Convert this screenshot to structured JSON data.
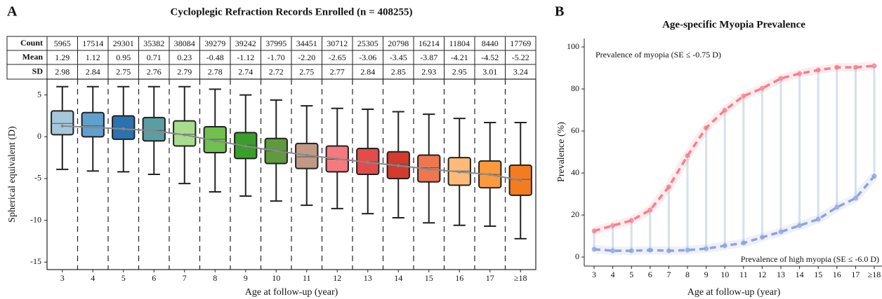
{
  "chart_data": [
    {
      "type": "box",
      "panel_label": "A",
      "title": "Cycloplegic Refraction Records Enrolled (n = 408255)",
      "x_label": "Age at follow-up (year)",
      "y_label": "Spherical equivalent (D)",
      "categories": [
        "3",
        "4",
        "5",
        "6",
        "7",
        "8",
        "9",
        "10",
        "11",
        "12",
        "13",
        "14",
        "15",
        "16",
        "17",
        "≥18"
      ],
      "table": {
        "rows": [
          {
            "name": "Count",
            "values": [
              5965,
              17514,
              29301,
              35382,
              38084,
              39279,
              39242,
              37995,
              34451,
              30712,
              25305,
              20798,
              16214,
              11804,
              8440,
              17769
            ]
          },
          {
            "name": "Mean",
            "values": [
              1.29,
              1.12,
              0.95,
              0.71,
              0.23,
              -0.48,
              -1.12,
              -1.7,
              -2.2,
              -2.65,
              -3.06,
              -3.45,
              -3.87,
              -4.21,
              -4.52,
              -5.22
            ],
            "value_labels": [
              "1.29",
              "1.12",
              "0.95",
              "0.71",
              "0.23",
              "-0.48",
              "-1.12",
              "-1.70",
              "-2.20",
              "-2.65",
              "-3.06",
              "-3.45",
              "-3.87",
              "-4.21",
              "-4.52",
              "-5.22"
            ]
          },
          {
            "name": "SD",
            "values": [
              2.98,
              2.84,
              2.75,
              2.76,
              2.79,
              2.78,
              2.74,
              2.72,
              2.75,
              2.77,
              2.84,
              2.85,
              2.93,
              2.95,
              3.01,
              3.24
            ]
          }
        ]
      },
      "whisker_high": [
        6.0,
        6.0,
        6.0,
        6.0,
        6.0,
        5.7,
        5.0,
        4.4,
        3.7,
        3.4,
        3.3,
        3.0,
        2.7,
        2.2,
        1.7,
        1.7
      ],
      "q3": [
        3.1,
        2.9,
        2.5,
        2.3,
        1.9,
        1.2,
        0.5,
        -0.2,
        -0.8,
        -1.1,
        -1.4,
        -1.8,
        -2.2,
        -2.5,
        -2.9,
        -3.4
      ],
      "median": [
        1.6,
        1.3,
        1.0,
        0.75,
        0.3,
        -0.3,
        -1.0,
        -1.7,
        -2.4,
        -2.7,
        -3.0,
        -3.3,
        -3.7,
        -4.1,
        -4.5,
        -5.1
      ],
      "q1": [
        0.25,
        0.0,
        -0.3,
        -0.5,
        -1.1,
        -1.9,
        -2.6,
        -3.2,
        -3.8,
        -4.2,
        -4.5,
        -5.0,
        -5.4,
        -5.8,
        -6.1,
        -7.0
      ],
      "whisker_low": [
        -3.9,
        -4.1,
        -4.2,
        -4.5,
        -5.6,
        -6.6,
        -7.1,
        -7.7,
        -8.2,
        -8.6,
        -9.2,
        -9.7,
        -10.3,
        -10.6,
        -10.7,
        -12.2
      ],
      "colors": [
        "#a6c8dc",
        "#5fa0cf",
        "#2c72b0",
        "#5a9ea3",
        "#a8dc8e",
        "#6fc04f",
        "#3a9e2a",
        "#5f9a3e",
        "#c09a84",
        "#f47a80",
        "#e24c4c",
        "#d43a2e",
        "#ee7750",
        "#fdbb7a",
        "#fb9a3c",
        "#f47c20"
      ],
      "mean_line_color": "#888888",
      "ylim": [
        -15.9,
        6.9
      ],
      "yticks": [
        5,
        0,
        -5,
        -10,
        -15
      ]
    },
    {
      "type": "line",
      "panel_label": "B",
      "title": "Age-specific Myopia Prevalence",
      "x_label": "Age at follow-up (year)",
      "y_label": "Prevalence (%)",
      "categories": [
        "3",
        "4",
        "5",
        "6",
        "7",
        "8",
        "9",
        "10",
        "11",
        "12",
        "13",
        "14",
        "15",
        "16",
        "17",
        "≥18"
      ],
      "series": [
        {
          "name": "Prevalence of myopia (SE ≤ -0.75 D)",
          "color": "#f4808c",
          "values": [
            12.4,
            15,
            17.4,
            22.4,
            33.4,
            48.2,
            61.5,
            69.9,
            76.6,
            80.3,
            85,
            87.3,
            89,
            90.3,
            90.3,
            91
          ]
        },
        {
          "name": "Prevalence of high myopia (SE ≤ -6.0 D)",
          "color": "#8ea4dc",
          "values": [
            3.7,
            3.0,
            3.0,
            3.3,
            3.0,
            3.3,
            4.0,
            5.4,
            6.7,
            9.4,
            12,
            15,
            18,
            23.7,
            28,
            38.5
          ]
        }
      ],
      "connector_color": "#d6e0ee",
      "ylim": [
        -4.3,
        104
      ],
      "yticks": [
        0,
        20,
        40,
        60,
        80,
        100
      ]
    }
  ]
}
